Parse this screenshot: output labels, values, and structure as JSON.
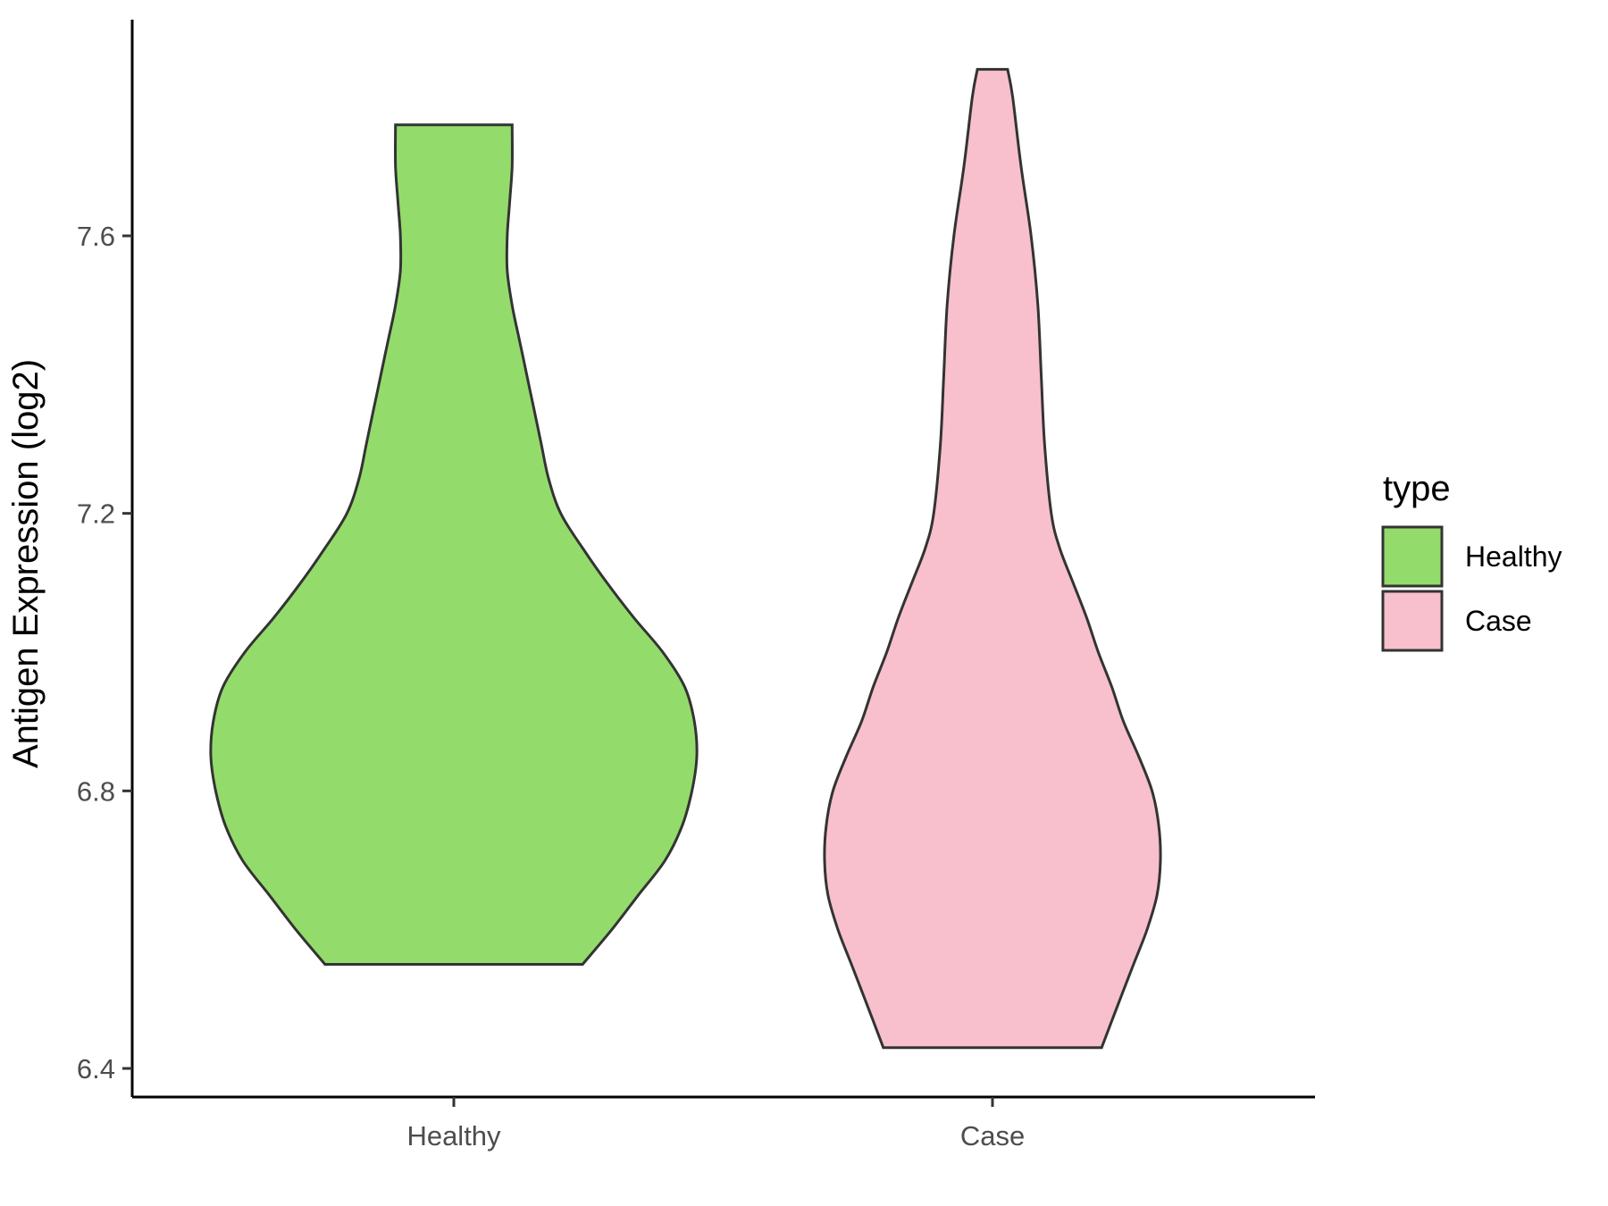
{
  "chart_data": {
    "type": "violin",
    "ylabel": "Antigen Expression (log2)",
    "ylim": [
      6.36,
      7.9
    ],
    "yticks": [
      6.4,
      6.8,
      7.2,
      7.6
    ],
    "y_tick_labels": [
      "6.4",
      "6.8",
      "7.2",
      "7.6"
    ],
    "categories": [
      "Healthy",
      "Case"
    ],
    "legend": {
      "title": "type",
      "position": "right",
      "items": [
        {
          "label": "Healthy",
          "color": "#93dc6b"
        },
        {
          "label": "Case",
          "color": "#f7c0cc"
        }
      ]
    },
    "series": [
      {
        "category": "Healthy",
        "color": "#93dc6b",
        "min": 6.55,
        "max": 7.76,
        "density_profile": [
          [
            6.55,
            0.53
          ],
          [
            6.6,
            0.65
          ],
          [
            6.65,
            0.76
          ],
          [
            6.7,
            0.87
          ],
          [
            6.75,
            0.94
          ],
          [
            6.8,
            0.98
          ],
          [
            6.85,
            1.0
          ],
          [
            6.9,
            0.99
          ],
          [
            6.95,
            0.95
          ],
          [
            7.0,
            0.86
          ],
          [
            7.05,
            0.74
          ],
          [
            7.1,
            0.63
          ],
          [
            7.15,
            0.53
          ],
          [
            7.2,
            0.44
          ],
          [
            7.25,
            0.39
          ],
          [
            7.3,
            0.36
          ],
          [
            7.35,
            0.33
          ],
          [
            7.4,
            0.3
          ],
          [
            7.45,
            0.27
          ],
          [
            7.5,
            0.24
          ],
          [
            7.55,
            0.22
          ],
          [
            7.6,
            0.22
          ],
          [
            7.65,
            0.23
          ],
          [
            7.7,
            0.24
          ],
          [
            7.76,
            0.24
          ]
        ]
      },
      {
        "category": "Case",
        "color": "#f7c0cc",
        "min": 6.43,
        "max": 7.84,
        "density_profile": [
          [
            6.43,
            0.65
          ],
          [
            6.5,
            0.76
          ],
          [
            6.55,
            0.84
          ],
          [
            6.6,
            0.92
          ],
          [
            6.65,
            0.98
          ],
          [
            6.7,
            1.0
          ],
          [
            6.75,
            0.99
          ],
          [
            6.8,
            0.95
          ],
          [
            6.85,
            0.87
          ],
          [
            6.9,
            0.78
          ],
          [
            6.95,
            0.71
          ],
          [
            7.0,
            0.63
          ],
          [
            7.05,
            0.56
          ],
          [
            7.1,
            0.48
          ],
          [
            7.15,
            0.4
          ],
          [
            7.2,
            0.35
          ],
          [
            7.3,
            0.31
          ],
          [
            7.4,
            0.29
          ],
          [
            7.5,
            0.27
          ],
          [
            7.6,
            0.23
          ],
          [
            7.7,
            0.17
          ],
          [
            7.8,
            0.12
          ],
          [
            7.84,
            0.09
          ]
        ]
      }
    ]
  }
}
